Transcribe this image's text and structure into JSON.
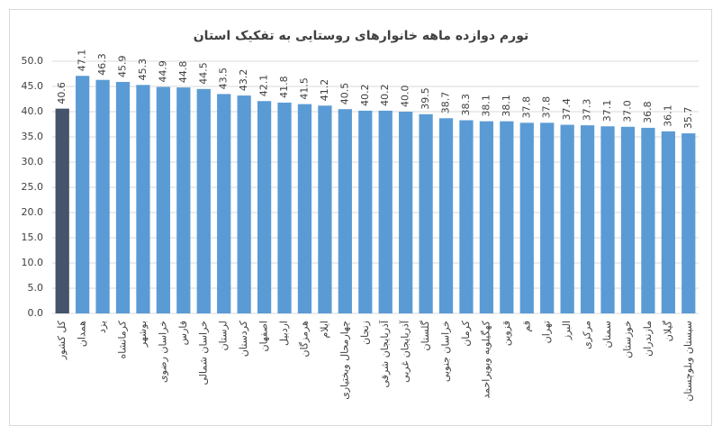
{
  "chart_data": {
    "type": "bar",
    "title": "تورم دوازده ماهه خانوارهای روستایی به تفکیک استان",
    "categories": [
      "کل کشور",
      "همدان",
      "یزد",
      "کرمانشاه",
      "بوشهر",
      "خراسان رضوی",
      "فارس",
      "خراسان شمالی",
      "لرستان",
      "کردستان",
      "اصفهان",
      "اردبیل",
      "هرمزگان",
      "ایلام",
      "چهارمحال وبختیاری",
      "زنجان",
      "آذربایجان شرقی",
      "آذربایجان غربی",
      "گلستان",
      "خراسان جنوبی",
      "کرمان",
      "کهگیلویه وبویراحمد",
      "قزوین",
      "قم",
      "تهران",
      "البرز",
      "مرکزی",
      "سمنان",
      "خوزستان",
      "مازندران",
      "گیلان",
      "سیستان وبلوچستان"
    ],
    "values": [
      40.6,
      47.1,
      46.3,
      45.9,
      45.3,
      44.9,
      44.8,
      44.5,
      43.5,
      43.2,
      42.1,
      41.8,
      41.5,
      41.2,
      40.5,
      40.2,
      40.2,
      40.0,
      39.5,
      38.7,
      38.3,
      38.1,
      38.1,
      37.8,
      37.8,
      37.4,
      37.3,
      37.1,
      37.0,
      36.8,
      36.1,
      35.7
    ],
    "value_labels": [
      "40.6",
      "47.1",
      "46.3",
      "45.9",
      "45.3",
      "44.9",
      "44.8",
      "44.5",
      "43.5",
      "43.2",
      "42.1",
      "41.8",
      "41.5",
      "41.2",
      "40.5",
      "40.2",
      "40.2",
      "40.0",
      "39.5",
      "38.7",
      "38.3",
      "38.1",
      "38.1",
      "37.8",
      "37.8",
      "37.4",
      "37.3",
      "37.1",
      "37.0",
      "36.8",
      "36.1",
      "35.7"
    ],
    "colors": [
      "#44546a",
      "#5b9bd5",
      "#5b9bd5",
      "#5b9bd5",
      "#5b9bd5",
      "#5b9bd5",
      "#5b9bd5",
      "#5b9bd5",
      "#5b9bd5",
      "#5b9bd5",
      "#5b9bd5",
      "#5b9bd5",
      "#5b9bd5",
      "#5b9bd5",
      "#5b9bd5",
      "#5b9bd5",
      "#5b9bd5",
      "#5b9bd5",
      "#5b9bd5",
      "#5b9bd5",
      "#5b9bd5",
      "#5b9bd5",
      "#5b9bd5",
      "#5b9bd5",
      "#5b9bd5",
      "#5b9bd5",
      "#5b9bd5",
      "#5b9bd5",
      "#5b9bd5",
      "#5b9bd5",
      "#5b9bd5",
      "#5b9bd5"
    ],
    "ylim": [
      0,
      50
    ],
    "yticks": [
      {
        "value": 0,
        "label": "0.0"
      },
      {
        "value": 5,
        "label": "5.0"
      },
      {
        "value": 10,
        "label": "10.0"
      },
      {
        "value": 15,
        "label": "15.0"
      },
      {
        "value": 20,
        "label": "20.0"
      },
      {
        "value": 25,
        "label": "25.0"
      },
      {
        "value": 30,
        "label": "30.0"
      },
      {
        "value": 35,
        "label": "35.0"
      },
      {
        "value": 40,
        "label": "40.0"
      },
      {
        "value": 45,
        "label": "45.0"
      },
      {
        "value": 50,
        "label": "50.0"
      }
    ],
    "grid": true
  }
}
